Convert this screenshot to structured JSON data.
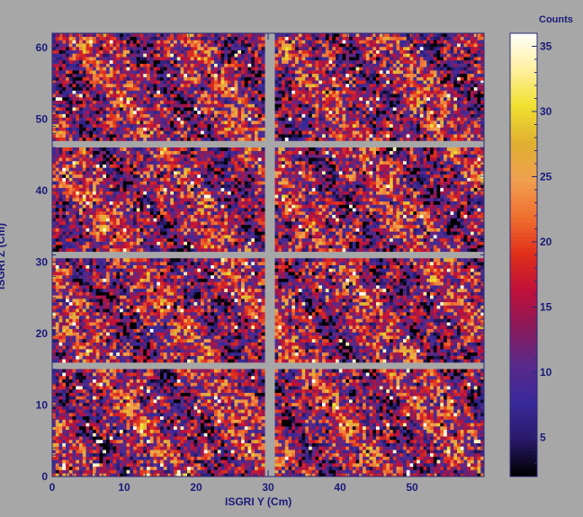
{
  "chart_data": {
    "type": "heatmap",
    "title": "",
    "xlabel": "ISGRI Y  (Cm)",
    "ylabel": "ISGRI Z  (Cm)",
    "xlim": [
      0,
      60
    ],
    "ylim": [
      0,
      62
    ],
    "xticks": [
      0,
      10,
      20,
      30,
      40,
      50
    ],
    "yticks": [
      0,
      10,
      20,
      30,
      40,
      50,
      60
    ],
    "grid": false,
    "colorbar": {
      "title": "Counts",
      "ticks": [
        5,
        10,
        15,
        20,
        25,
        30,
        35
      ],
      "range": [
        2,
        36
      ],
      "stops": [
        "#000000",
        "#2a1a6e",
        "#3a2a9a",
        "#5a2a8a",
        "#8a1a5a",
        "#c0103a",
        "#e0301a",
        "#f07030",
        "#f0a050",
        "#e0b030",
        "#f0e030",
        "#fff0a0",
        "#ffffff"
      ]
    },
    "gap_color": "#a7a7a7",
    "module_gaps_y": [
      29.6,
      30.8
    ],
    "module_gaps_z": [
      [
        15.2,
        16.2
      ],
      [
        30.6,
        31.6
      ],
      [
        46.0,
        47.0
      ]
    ],
    "detector_grid": {
      "nx": 128,
      "nz": 132,
      "y_extent": [
        0,
        60
      ],
      "z_extent": [
        0,
        62
      ]
    },
    "description_values": {
      "min_counts": 2,
      "max_counts": 36
    }
  }
}
